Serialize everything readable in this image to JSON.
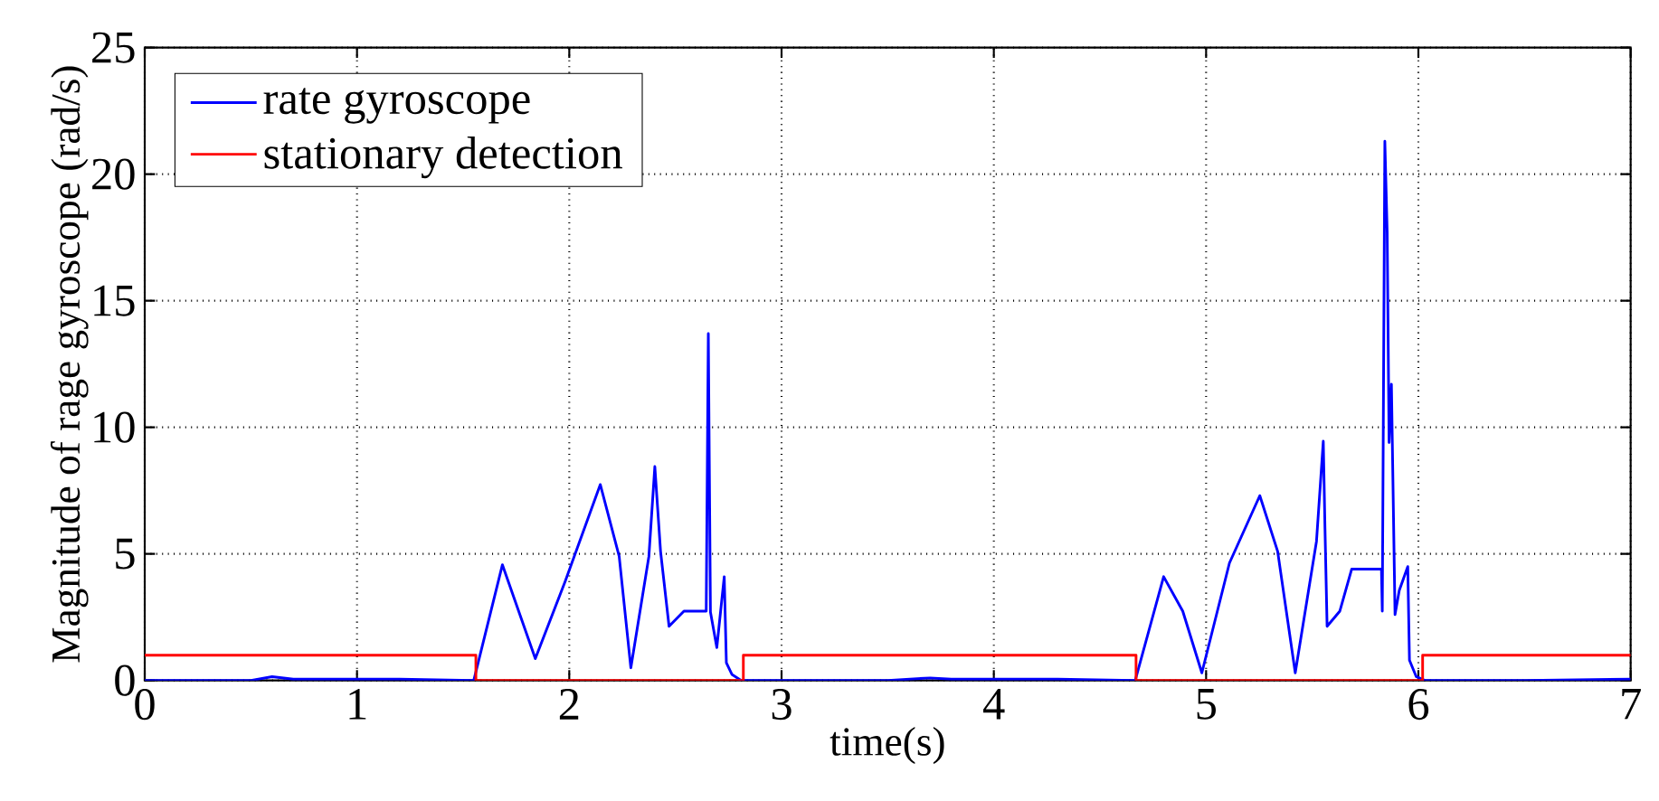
{
  "chart_data": {
    "type": "line",
    "xlabel": "time(s)",
    "ylabel": "Magnitude of rage gyroscope (rad/s)",
    "xlim": [
      0,
      7
    ],
    "ylim": [
      0,
      25
    ],
    "xticks": [
      0,
      1,
      2,
      3,
      4,
      5,
      6,
      7
    ],
    "yticks": [
      0,
      5,
      10,
      15,
      20,
      25
    ],
    "grid": true,
    "legend": "top left",
    "marker": "none",
    "line_style": "solid",
    "series": [
      {
        "name": "rate gyroscope",
        "color": "#0000ff",
        "x": [
          0,
          0.5,
          0.6,
          0.7,
          1.2,
          1.55,
          1.685,
          1.84,
          1.98,
          2.146,
          2.235,
          2.29,
          2.375,
          2.403,
          2.43,
          2.47,
          2.54,
          2.645,
          2.655,
          2.665,
          2.695,
          2.73,
          2.74,
          2.766,
          2.81,
          3.5,
          3.7,
          3.8,
          4.3,
          4.666,
          4.8,
          4.89,
          4.98,
          5.11,
          5.253,
          5.337,
          5.42,
          5.52,
          5.552,
          5.56,
          5.57,
          5.63,
          5.686,
          5.826,
          5.83,
          5.842,
          5.853,
          5.862,
          5.873,
          5.89,
          5.91,
          5.95,
          5.958,
          5.99,
          6.03,
          6.5,
          7
        ],
        "values": [
          0,
          0,
          0.15,
          0.05,
          0.05,
          0,
          4.57,
          0.86,
          3.9,
          7.74,
          4.9,
          0.5,
          4.9,
          8.45,
          5.1,
          2.14,
          2.74,
          2.74,
          13.7,
          2.7,
          1.3,
          4.1,
          0.7,
          0.24,
          0,
          0,
          0.1,
          0.05,
          0.05,
          0,
          4.1,
          2.74,
          0.3,
          4.64,
          7.3,
          5.1,
          0.3,
          5.5,
          9.45,
          6,
          2.14,
          2.74,
          4.4,
          4.4,
          2.74,
          21.3,
          17.7,
          9.4,
          11.7,
          2.6,
          3.56,
          4.5,
          0.8,
          0.15,
          0,
          0,
          0.05
        ]
      },
      {
        "name": "stationary detection",
        "color": "#ff0000",
        "type": "step",
        "x": [
          0,
          1.56,
          2.82,
          4.67,
          6.02,
          7
        ],
        "values": [
          1,
          0,
          1,
          0,
          1,
          1
        ]
      }
    ]
  }
}
